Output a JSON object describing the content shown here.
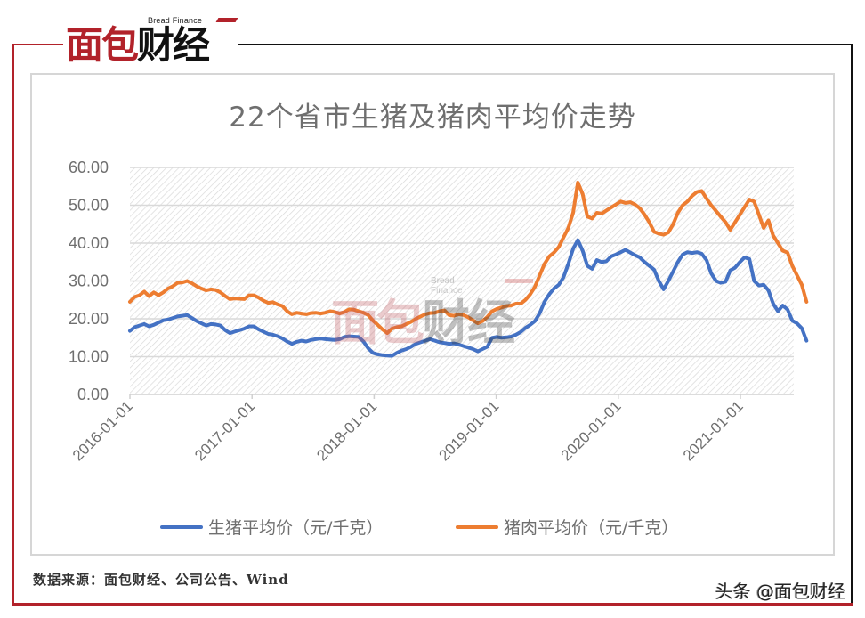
{
  "header": {
    "logo_subtitle": "Bread Finance",
    "logo_red": "面包",
    "logo_black": "财经"
  },
  "chart_data": {
    "type": "line",
    "title": "22个省市生猪及猪肉平均价走势",
    "xlabel": "",
    "ylabel": "",
    "ylim": [
      0,
      60
    ],
    "yticks": [
      "0.00",
      "10.00",
      "20.00",
      "30.00",
      "40.00",
      "50.00",
      "60.00"
    ],
    "xticks": [
      "2016-01-01",
      "2017-01-01",
      "2018-01-01",
      "2019-01-01",
      "2020-01-01",
      "2021-01-01"
    ],
    "x_range_months": [
      0,
      66.5
    ],
    "grid": true,
    "legend_position": "bottom",
    "series": [
      {
        "name": "生猪平均价（元/千克）",
        "color": "#4472c4",
        "points": [
          [
            0,
            16.8
          ],
          [
            0.5,
            17.8
          ],
          [
            1,
            18.2
          ],
          [
            1.5,
            18.6
          ],
          [
            2,
            18.0
          ],
          [
            2.5,
            18.4
          ],
          [
            3,
            19.0
          ],
          [
            3.5,
            19.6
          ],
          [
            4,
            19.8
          ],
          [
            4.5,
            20.2
          ],
          [
            5,
            20.6
          ],
          [
            5.5,
            20.8
          ],
          [
            6,
            21.0
          ],
          [
            6.5,
            20.2
          ],
          [
            7,
            19.4
          ],
          [
            7.5,
            18.8
          ],
          [
            8,
            18.2
          ],
          [
            8.5,
            18.6
          ],
          [
            9,
            18.5
          ],
          [
            9.5,
            18.2
          ],
          [
            10,
            17.0
          ],
          [
            10.5,
            16.2
          ],
          [
            11,
            16.6
          ],
          [
            11.5,
            17.0
          ],
          [
            12,
            17.4
          ],
          [
            12.5,
            18.0
          ],
          [
            13,
            18.0
          ],
          [
            13.5,
            17.2
          ],
          [
            14,
            16.6
          ],
          [
            14.5,
            16.0
          ],
          [
            15,
            15.8
          ],
          [
            15.5,
            15.4
          ],
          [
            16,
            14.8
          ],
          [
            16.5,
            14.0
          ],
          [
            17,
            13.4
          ],
          [
            17.5,
            13.9
          ],
          [
            18,
            14.2
          ],
          [
            18.5,
            14.0
          ],
          [
            19,
            14.4
          ],
          [
            19.5,
            14.6
          ],
          [
            20,
            14.8
          ],
          [
            20.5,
            14.6
          ],
          [
            21,
            14.5
          ],
          [
            21.5,
            14.4
          ],
          [
            22,
            14.6
          ],
          [
            22.5,
            15.2
          ],
          [
            23,
            15.4
          ],
          [
            23.5,
            15.3
          ],
          [
            24,
            15.2
          ],
          [
            24.5,
            14.0
          ],
          [
            25,
            12.2
          ],
          [
            25.5,
            11.0
          ],
          [
            26,
            10.6
          ],
          [
            26.5,
            10.4
          ],
          [
            27,
            10.3
          ],
          [
            27.5,
            10.2
          ],
          [
            28,
            11.0
          ],
          [
            28.5,
            11.6
          ],
          [
            29,
            12.0
          ],
          [
            29.5,
            12.6
          ],
          [
            30,
            13.4
          ],
          [
            30.5,
            13.8
          ],
          [
            31,
            14.2
          ],
          [
            31.5,
            14.6
          ],
          [
            32,
            14.2
          ],
          [
            32.5,
            13.8
          ],
          [
            33,
            13.6
          ],
          [
            33.5,
            13.4
          ],
          [
            34,
            13.5
          ],
          [
            34.5,
            13.2
          ],
          [
            35,
            12.8
          ],
          [
            35.5,
            12.4
          ],
          [
            36,
            12.0
          ],
          [
            36.5,
            11.4
          ],
          [
            37,
            12.0
          ],
          [
            37.5,
            12.6
          ],
          [
            38,
            15.0
          ],
          [
            38.5,
            15.2
          ],
          [
            39,
            15.0
          ],
          [
            39.5,
            15.1
          ],
          [
            40,
            15.3
          ],
          [
            40.5,
            15.8
          ],
          [
            41,
            16.5
          ],
          [
            41.5,
            17.6
          ],
          [
            42,
            18.4
          ],
          [
            42.5,
            19.4
          ],
          [
            43,
            21.5
          ],
          [
            43.5,
            24.5
          ],
          [
            44,
            26.5
          ],
          [
            44.5,
            28.0
          ],
          [
            45,
            29.0
          ],
          [
            45.5,
            31.0
          ],
          [
            46,
            34.5
          ],
          [
            46.5,
            38.5
          ],
          [
            47,
            40.8
          ],
          [
            47.5,
            38.0
          ],
          [
            48,
            34.0
          ],
          [
            48.5,
            33.2
          ],
          [
            49,
            35.5
          ],
          [
            49.5,
            35.0
          ],
          [
            50,
            35.2
          ],
          [
            50.5,
            36.5
          ],
          [
            51,
            37.0
          ],
          [
            51.5,
            37.6
          ],
          [
            52,
            38.2
          ],
          [
            52.5,
            37.5
          ],
          [
            53,
            36.8
          ],
          [
            53.5,
            36.2
          ],
          [
            54,
            35.0
          ],
          [
            54.5,
            34.0
          ],
          [
            55,
            33.0
          ],
          [
            55.5,
            30.0
          ],
          [
            56,
            27.8
          ],
          [
            56.5,
            30.0
          ],
          [
            57,
            32.5
          ],
          [
            57.5,
            35.0
          ],
          [
            58,
            37.0
          ],
          [
            58.5,
            37.6
          ],
          [
            59,
            37.4
          ],
          [
            59.5,
            37.6
          ],
          [
            60,
            37.2
          ],
          [
            60.5,
            35.5
          ],
          [
            61,
            32.0
          ],
          [
            61.5,
            30.0
          ],
          [
            62,
            29.5
          ],
          [
            62.5,
            29.8
          ],
          [
            63,
            32.8
          ],
          [
            63.5,
            33.5
          ],
          [
            64,
            35.0
          ],
          [
            64.5,
            36.2
          ],
          [
            65,
            35.8
          ],
          [
            65.5,
            30.0
          ],
          [
            66,
            28.8
          ],
          [
            66.5,
            29.0
          ],
          [
            67,
            27.5
          ],
          [
            67.5,
            24.0
          ],
          [
            68,
            22.0
          ],
          [
            68.5,
            23.5
          ],
          [
            69,
            22.5
          ],
          [
            69.5,
            19.5
          ],
          [
            70,
            18.8
          ],
          [
            70.5,
            17.5
          ],
          [
            71,
            14.2
          ]
        ]
      },
      {
        "name": "猪肉平均价（元/千克）",
        "color": "#ed7d31",
        "points": [
          [
            0,
            24.5
          ],
          [
            0.5,
            25.8
          ],
          [
            1,
            26.2
          ],
          [
            1.5,
            27.2
          ],
          [
            2,
            26.0
          ],
          [
            2.5,
            27.0
          ],
          [
            3,
            26.2
          ],
          [
            3.5,
            27.0
          ],
          [
            4,
            28.0
          ],
          [
            4.5,
            28.6
          ],
          [
            5,
            29.5
          ],
          [
            5.5,
            29.6
          ],
          [
            6,
            30.0
          ],
          [
            6.5,
            29.4
          ],
          [
            7,
            28.6
          ],
          [
            7.5,
            28.0
          ],
          [
            8,
            27.5
          ],
          [
            8.5,
            27.8
          ],
          [
            9,
            27.6
          ],
          [
            9.5,
            27.0
          ],
          [
            10,
            26.0
          ],
          [
            10.5,
            25.2
          ],
          [
            11,
            25.4
          ],
          [
            11.5,
            25.3
          ],
          [
            12,
            25.2
          ],
          [
            12.5,
            26.2
          ],
          [
            13,
            26.2
          ],
          [
            13.5,
            25.6
          ],
          [
            14,
            24.8
          ],
          [
            14.5,
            24.2
          ],
          [
            15,
            24.4
          ],
          [
            15.5,
            23.8
          ],
          [
            16,
            23.4
          ],
          [
            16.5,
            22.0
          ],
          [
            17,
            21.2
          ],
          [
            17.5,
            21.6
          ],
          [
            18,
            21.4
          ],
          [
            18.5,
            21.2
          ],
          [
            19,
            21.5
          ],
          [
            19.5,
            21.6
          ],
          [
            20,
            21.4
          ],
          [
            20.5,
            21.6
          ],
          [
            21,
            22.0
          ],
          [
            21.5,
            21.8
          ],
          [
            22,
            21.4
          ],
          [
            22.5,
            21.8
          ],
          [
            23,
            22.5
          ],
          [
            23.5,
            22.4
          ],
          [
            24,
            22.0
          ],
          [
            24.5,
            21.6
          ],
          [
            25,
            21.0
          ],
          [
            25.5,
            19.5
          ],
          [
            26,
            18.4
          ],
          [
            26.5,
            17.2
          ],
          [
            27,
            16.2
          ],
          [
            27.5,
            17.4
          ],
          [
            28,
            17.8
          ],
          [
            28.5,
            18.0
          ],
          [
            29,
            18.6
          ],
          [
            29.5,
            19.2
          ],
          [
            30,
            20.0
          ],
          [
            30.5,
            20.6
          ],
          [
            31,
            21.2
          ],
          [
            31.5,
            21.5
          ],
          [
            32,
            21.6
          ],
          [
            32.5,
            22.0
          ],
          [
            33,
            22.2
          ],
          [
            33.5,
            21.0
          ],
          [
            34,
            20.8
          ],
          [
            34.5,
            21.2
          ],
          [
            35,
            21.0
          ],
          [
            35.5,
            20.4
          ],
          [
            36,
            19.6
          ],
          [
            36.5,
            18.8
          ],
          [
            37,
            19.4
          ],
          [
            37.5,
            20.5
          ],
          [
            38,
            22.0
          ],
          [
            38.5,
            22.6
          ],
          [
            39,
            23.0
          ],
          [
            39.5,
            23.4
          ],
          [
            40,
            23.5
          ],
          [
            40.5,
            24.0
          ],
          [
            41,
            24.0
          ],
          [
            41.5,
            25.0
          ],
          [
            42,
            26.5
          ],
          [
            42.5,
            28.5
          ],
          [
            43,
            31.5
          ],
          [
            43.5,
            34.5
          ],
          [
            44,
            36.5
          ],
          [
            44.5,
            37.5
          ],
          [
            45,
            39.0
          ],
          [
            45.5,
            41.5
          ],
          [
            46,
            44.0
          ],
          [
            46.5,
            48.0
          ],
          [
            47,
            56.0
          ],
          [
            47.5,
            53.0
          ],
          [
            48,
            47.0
          ],
          [
            48.5,
            46.5
          ],
          [
            49,
            48.0
          ],
          [
            49.5,
            47.8
          ],
          [
            50,
            48.6
          ],
          [
            50.5,
            49.4
          ],
          [
            51,
            50.2
          ],
          [
            51.5,
            51.0
          ],
          [
            52,
            50.6
          ],
          [
            52.5,
            50.8
          ],
          [
            53,
            50.2
          ],
          [
            53.5,
            49.2
          ],
          [
            54,
            47.5
          ],
          [
            54.5,
            45.5
          ],
          [
            55,
            43.0
          ],
          [
            55.5,
            42.5
          ],
          [
            56,
            42.2
          ],
          [
            56.5,
            42.8
          ],
          [
            57,
            45.0
          ],
          [
            57.5,
            48.0
          ],
          [
            58,
            50.0
          ],
          [
            58.5,
            51.0
          ],
          [
            59,
            52.5
          ],
          [
            59.5,
            53.5
          ],
          [
            60,
            53.8
          ],
          [
            60.5,
            51.8
          ],
          [
            61,
            50.0
          ],
          [
            61.5,
            48.5
          ],
          [
            62,
            47.0
          ],
          [
            62.5,
            45.5
          ],
          [
            63,
            43.5
          ],
          [
            63.5,
            45.5
          ],
          [
            64,
            47.5
          ],
          [
            64.5,
            49.5
          ],
          [
            65,
            51.5
          ],
          [
            65.5,
            51.0
          ],
          [
            66,
            47.5
          ],
          [
            66.5,
            44.0
          ],
          [
            67,
            46.0
          ],
          [
            67.5,
            42.0
          ],
          [
            68,
            40.0
          ],
          [
            68.5,
            38.0
          ],
          [
            69,
            37.5
          ],
          [
            69.5,
            34.0
          ],
          [
            70,
            31.5
          ],
          [
            70.5,
            29.0
          ],
          [
            71,
            24.5
          ]
        ]
      }
    ]
  },
  "legend": {
    "items": [
      {
        "label": "生猪平均价（元/千克）",
        "color": "#4472c4"
      },
      {
        "label": "猪肉平均价（元/千克）",
        "color": "#ed7d31"
      }
    ]
  },
  "watermark": {
    "subtitle": "Bread Finance",
    "red": "面包",
    "black": "财经"
  },
  "footer": {
    "source": "数据来源：面包财经、公司公告、Wind",
    "credit": "头条 @面包财经"
  }
}
